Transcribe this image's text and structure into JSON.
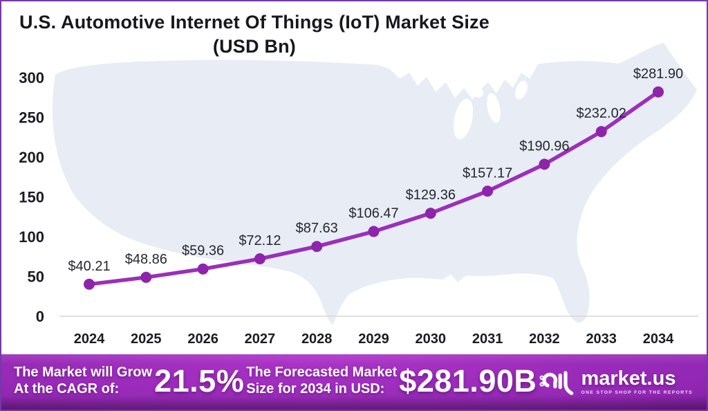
{
  "title": {
    "line1": "U.S. Automotive Internet Of Things (IoT) Market Size",
    "line2": "(USD Bn)"
  },
  "chart_data": {
    "type": "line",
    "title": "U.S. Automotive Internet Of Things (IoT) Market Size (USD Bn)",
    "x": [
      "2024",
      "2025",
      "2026",
      "2027",
      "2028",
      "2029",
      "2030",
      "2031",
      "2032",
      "2033",
      "2034"
    ],
    "values": [
      40.21,
      48.86,
      59.36,
      72.12,
      87.63,
      106.47,
      129.36,
      157.17,
      190.96,
      232.02,
      281.9
    ],
    "data_labels": [
      "$40.21",
      "$48.86",
      "$59.36",
      "$72.12",
      "$87.63",
      "$106.47",
      "$129.36",
      "$157.17",
      "$190.96",
      "$232.02",
      "$281.90"
    ],
    "ylim": [
      0,
      300
    ],
    "yticks": [
      0,
      50,
      100,
      150,
      200,
      250,
      300
    ],
    "xlabel": "",
    "ylabel": "",
    "grid": false,
    "legend_position": "none",
    "line_color": "#9B2FBA",
    "marker_color": "#8E24AA",
    "background_map": "united-states-silhouette"
  },
  "footer": {
    "cagr_label_line1": "The Market will Grow",
    "cagr_label_line2": "At the CAGR of:",
    "cagr_value": "21.5%",
    "forecast_label_line1": "The Forecasted Market",
    "forecast_label_line2": "Size for 2034 in USD:",
    "forecast_value": "$281.90B",
    "logo_text": "market.us",
    "logo_tagline": "ONE STOP SHOP FOR THE REPORTS"
  },
  "colors": {
    "accent_purple": "#9B2FBA",
    "marker_purple": "#8E24AA",
    "border_purple": "#7638A8",
    "footer_gradient_bright": "#AC33C8",
    "footer_gradient_dark": "#470A5C",
    "map_fill": "#E7ECF5",
    "axis_text": "#1b1b24",
    "baseline_gray": "#D6D6D6"
  }
}
